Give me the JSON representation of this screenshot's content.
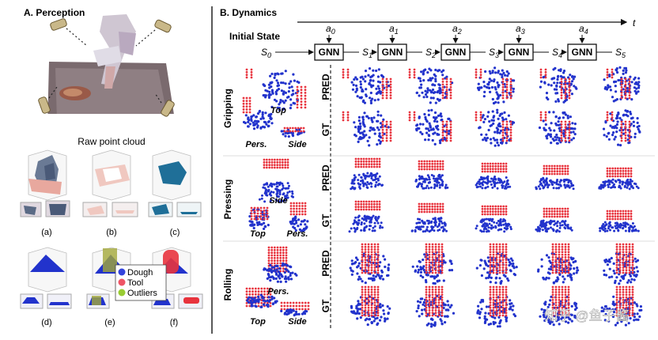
{
  "panelA": {
    "title": "A. Perception",
    "raw_caption": "Raw point cloud",
    "sub_labels": [
      "(a)",
      "(b)",
      "(c)",
      "(d)",
      "(e)",
      "(f)"
    ],
    "legend": [
      {
        "label": "Dough",
        "color": "#3344dd"
      },
      {
        "label": "Tool",
        "color": "#ee5566"
      },
      {
        "label": "Outliers",
        "color": "#99cc33"
      }
    ]
  },
  "panelB": {
    "title": "B. Dynamics",
    "time_label": "t",
    "initial_state": "Initial State",
    "block_label": "GNN",
    "actions": [
      "a",
      "a",
      "a",
      "a",
      "a"
    ],
    "action_subs": [
      "0",
      "1",
      "2",
      "3",
      "4"
    ],
    "states": [
      "S",
      "S",
      "S",
      "S",
      "S",
      "S"
    ],
    "state_subs": [
      "0",
      "1",
      "2",
      "3",
      "4",
      "5"
    ],
    "tasks": [
      {
        "name": "Gripping",
        "views": [
          "Top",
          "Pers.",
          "Side"
        ]
      },
      {
        "name": "Pressing",
        "views": [
          "Side",
          "Top",
          "Pers."
        ]
      },
      {
        "name": "Rolling",
        "views": [
          "Pers.",
          "Top",
          "Side"
        ]
      }
    ],
    "row_labels": [
      "PRED",
      "GT"
    ]
  },
  "watermark": "知乎 @鱼子酱",
  "colors": {
    "dough": "#2233cc",
    "tool": "#e8333d",
    "outlier": "#99cc33"
  }
}
